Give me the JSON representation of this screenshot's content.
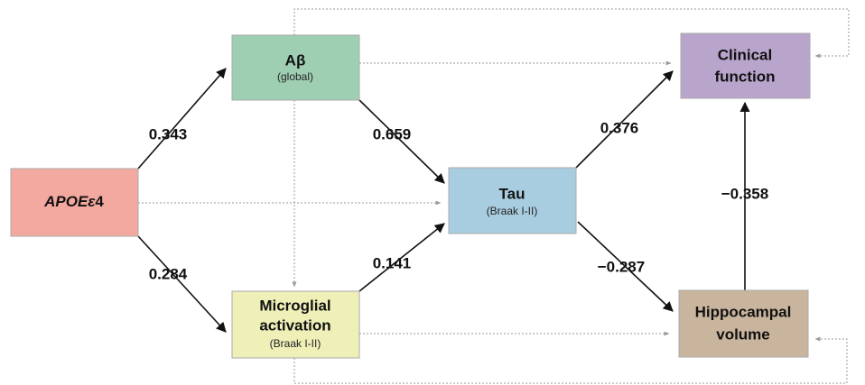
{
  "nodes": [
    {
      "label_italic": "APOEε",
      "label_rest": "4"
    },
    {
      "label": "Aβ",
      "sublabel": "(global)"
    },
    {
      "label_line1": "Microglial",
      "label_line2": "activation",
      "sublabel": "(Braak I-II)"
    },
    {
      "label": "Tau",
      "sublabel": "(Braak I-II)"
    },
    {
      "label_line1": "Clinical",
      "label_line2": "function"
    },
    {
      "label_line1": "Hippocampal",
      "label_line2": "volume"
    }
  ],
  "edges": [
    {
      "from": "APOEε4",
      "to": "Aβ",
      "label": "0.343"
    },
    {
      "from": "APOEε4",
      "to": "Microglial activation",
      "label": "0.284"
    },
    {
      "from": "Aβ",
      "to": "Tau",
      "label": "0.659"
    },
    {
      "from": "Microglial activation",
      "to": "Tau",
      "label": "0.141"
    },
    {
      "from": "Tau",
      "to": "Clinical function",
      "label": "0.376"
    },
    {
      "from": "Tau",
      "to": "Hippocampal volume",
      "label": "−0.287"
    },
    {
      "from": "Hippocampal volume",
      "to": "Clinical function",
      "label": "−0.358"
    }
  ]
}
